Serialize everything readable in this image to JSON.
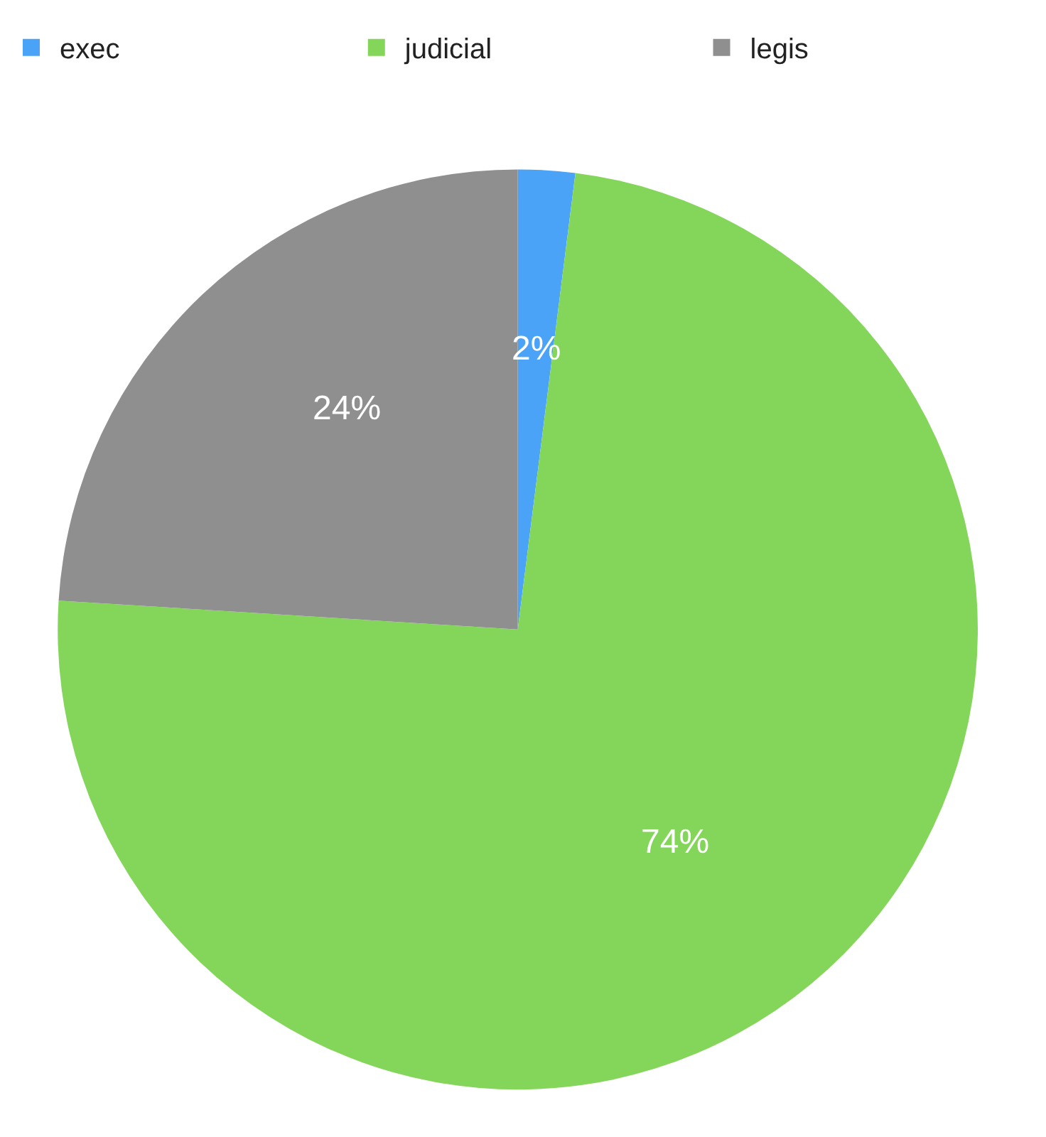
{
  "chart_data": {
    "type": "pie",
    "categories": [
      "exec",
      "judicial",
      "legis"
    ],
    "values": [
      2,
      74,
      24
    ],
    "colors": [
      "#4aa3f7",
      "#84d65a",
      "#8f8f8f"
    ],
    "value_labels": [
      "2%",
      "74%",
      "24%"
    ],
    "legend": "top"
  }
}
